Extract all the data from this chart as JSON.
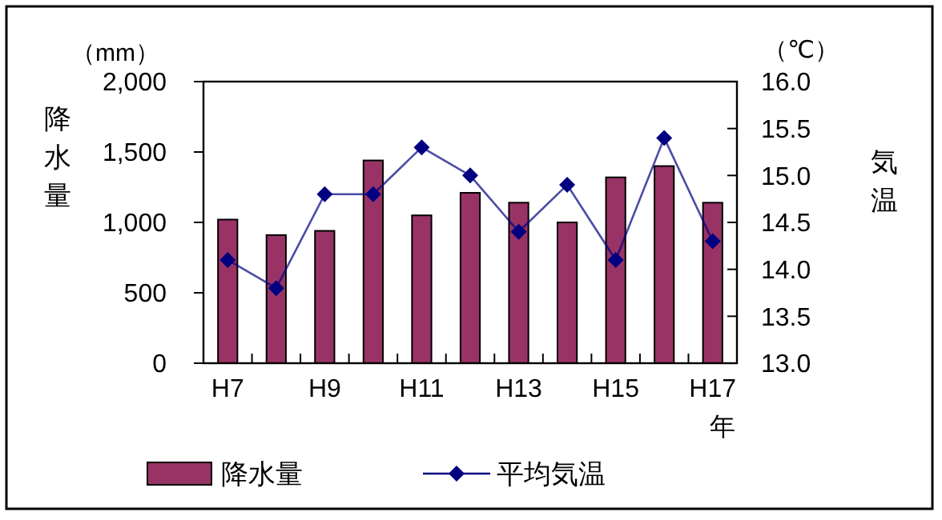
{
  "chart_data": {
    "type": "bar",
    "categories": [
      "H7",
      null,
      "H9",
      null,
      "H11",
      null,
      "H13",
      null,
      "H15",
      null,
      "H17"
    ],
    "xlabel": "年",
    "ylabel": "降水量",
    "y2label": "気温",
    "annotations": [
      "（mm）",
      "（℃）"
    ],
    "series": [
      {
        "name": "降水量",
        "color": "#993366",
        "values": [
          1020,
          910,
          940,
          1440,
          1050,
          1210,
          1140,
          1000,
          1320,
          1400,
          1140
        ]
      },
      {
        "name": "平均気温",
        "type": "line",
        "axis": "y2",
        "color": "#000080",
        "marker": "diamond",
        "values": [
          14.1,
          13.8,
          14.8,
          14.8,
          15.3,
          15.0,
          14.4,
          14.9,
          14.1,
          15.4,
          14.3
        ]
      }
    ],
    "ylim": [
      0,
      2000
    ],
    "yticks": [
      0,
      {
        "value": 500,
        "label": "500"
      },
      {
        "value": 1000,
        "label": "1,000"
      },
      {
        "value": 1500,
        "label": "1,500"
      },
      {
        "value": 2000,
        "label": "2,000"
      }
    ],
    "y2lim": [
      13,
      16
    ],
    "y2ticks": [
      {
        "value": 13,
        "label": "13.0"
      },
      {
        "value": 13.5,
        "label": "13.5"
      },
      {
        "value": 14,
        "label": "14.0"
      },
      {
        "value": 14.5,
        "label": "14.5"
      },
      {
        "value": 15,
        "label": "15.0"
      },
      {
        "value": 15.5,
        "label": "15.5"
      },
      {
        "value": 16,
        "label": "16.0"
      }
    ],
    "grid": false,
    "legend": "bottom"
  }
}
